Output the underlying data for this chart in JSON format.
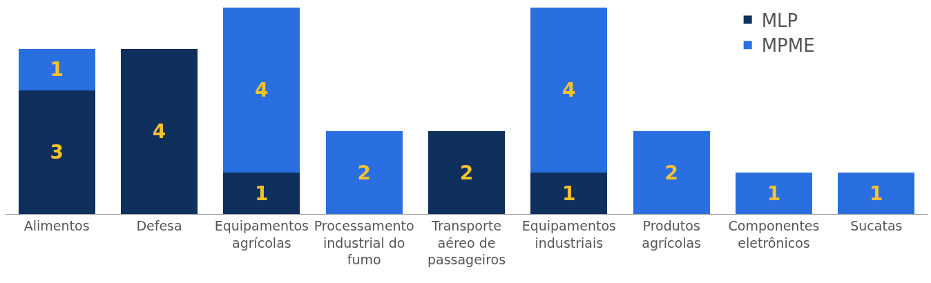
{
  "chart_data": {
    "type": "bar",
    "stacked": true,
    "categories": [
      "Alimentos",
      "Defesa",
      "Equipamentos agrícolas",
      "Processamento industrial do fumo",
      "Transporte aéreo de passageiros",
      "Equipamentos industriais",
      "Produtos agrícolas",
      "Componentes eletrônicos",
      "Sucatas"
    ],
    "series": [
      {
        "name": "MLP",
        "color": "#0f2f5c",
        "values": [
          3,
          4,
          1,
          null,
          2,
          1,
          null,
          null,
          null
        ]
      },
      {
        "name": "MPME",
        "color": "#2a6fe0",
        "values": [
          1,
          null,
          4,
          2,
          null,
          4,
          2,
          1,
          1
        ]
      }
    ],
    "ylim": [
      0,
      5
    ],
    "tick_labels": "x",
    "data_labels": true,
    "legend": "top right"
  }
}
